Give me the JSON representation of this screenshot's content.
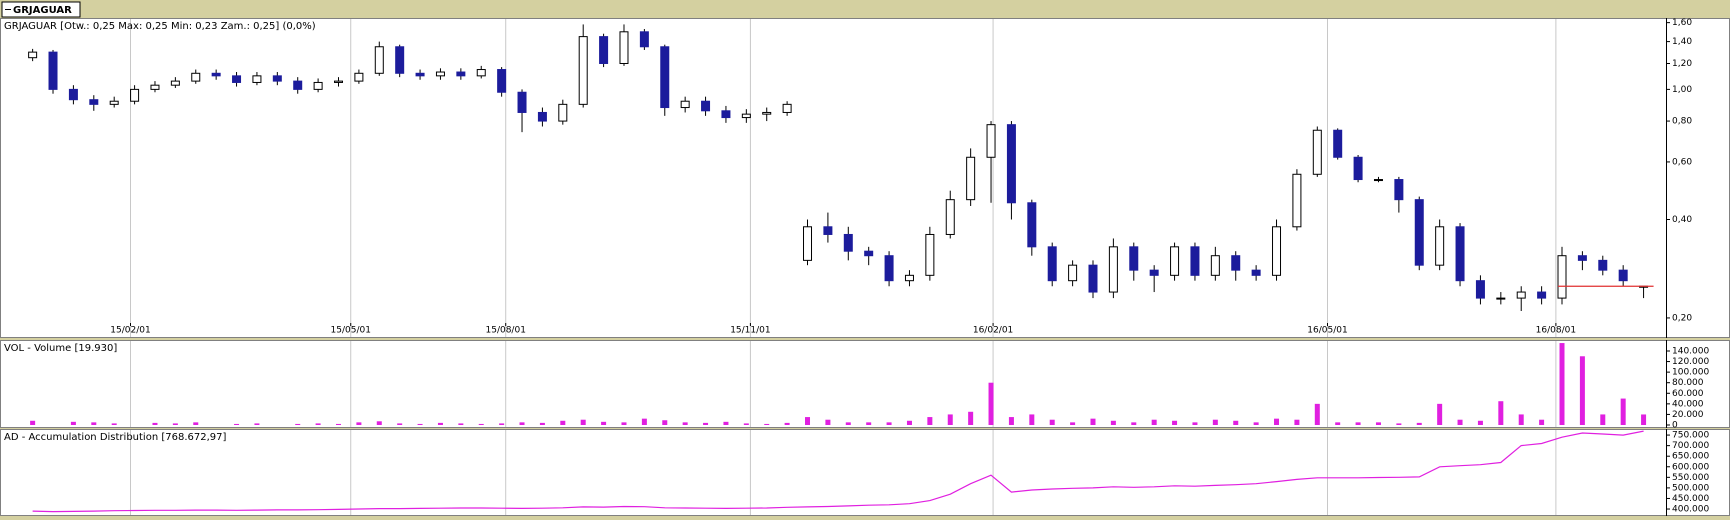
{
  "tab_label": "GRJAGUAR",
  "chart_data": [
    {
      "type": "candlestick",
      "title": "GRJAGUAR [Otw.: 0,25 Max: 0,25 Min: 0,23 Zam.: 0,25] (0,0%)",
      "xlim": [
        -1.6,
        80.1
      ],
      "xticks": [
        {
          "value": 4.8,
          "label": "15/02/01"
        },
        {
          "value": 15.6,
          "label": "15/05/01"
        },
        {
          "value": 23.2,
          "label": "15/08/01"
        },
        {
          "value": 35.2,
          "label": "15/11/01"
        },
        {
          "value": 47.1,
          "label": "16/02/01"
        },
        {
          "value": 63.5,
          "label": "16/05/01"
        },
        {
          "value": 74.7,
          "label": "16/08/01"
        }
      ],
      "ylim": [
        0.193,
        1.63
      ],
      "yticks": [
        {
          "value": 0.2,
          "label": "0,20"
        },
        {
          "value": 0.4,
          "label": "0,40"
        },
        {
          "value": 0.6,
          "label": "0,60"
        },
        {
          "value": 0.8,
          "label": "0,80"
        },
        {
          "value": 1.0,
          "label": "1,00"
        },
        {
          "value": 1.2,
          "label": "1,20"
        },
        {
          "value": 1.4,
          "label": "1,40"
        },
        {
          "value": 1.6,
          "label": "1,60"
        }
      ],
      "log_scale": true,
      "grid": true,
      "up_color": "#ffffff",
      "down_color": "#1c1c9c",
      "reference_line": {
        "value": 0.25,
        "color": "#e03030"
      },
      "open": [
        1.25,
        1.3,
        1.0,
        0.93,
        0.9,
        0.92,
        1.0,
        1.03,
        1.06,
        1.12,
        1.1,
        1.05,
        1.1,
        1.06,
        1.0,
        1.05,
        1.06,
        1.12,
        1.35,
        1.12,
        1.1,
        1.13,
        1.1,
        1.15,
        0.98,
        0.85,
        0.8,
        0.9,
        1.45,
        1.2,
        1.5,
        1.35,
        0.88,
        0.92,
        0.86,
        0.82,
        0.84,
        0.85,
        0.3,
        0.38,
        0.36,
        0.32,
        0.31,
        0.26,
        0.27,
        0.36,
        0.46,
        0.62,
        0.78,
        0.45,
        0.33,
        0.26,
        0.29,
        0.24,
        0.33,
        0.28,
        0.27,
        0.33,
        0.27,
        0.31,
        0.28,
        0.27,
        0.38,
        0.55,
        0.75,
        0.62,
        0.53,
        0.53,
        0.46,
        0.29,
        0.38,
        0.26,
        0.23,
        0.23,
        0.24,
        0.23,
        0.31,
        0.3,
        0.28,
        0.25
      ],
      "high": [
        1.33,
        1.32,
        1.03,
        0.96,
        0.95,
        1.03,
        1.06,
        1.09,
        1.15,
        1.15,
        1.13,
        1.13,
        1.13,
        1.09,
        1.08,
        1.09,
        1.15,
        1.4,
        1.37,
        1.15,
        1.16,
        1.16,
        1.18,
        1.17,
        1.0,
        0.88,
        0.93,
        1.58,
        1.48,
        1.58,
        1.53,
        1.37,
        0.95,
        0.95,
        0.89,
        0.87,
        0.88,
        0.92,
        0.4,
        0.42,
        0.38,
        0.33,
        0.32,
        0.28,
        0.38,
        0.49,
        0.66,
        0.8,
        0.8,
        0.46,
        0.34,
        0.3,
        0.3,
        0.35,
        0.34,
        0.29,
        0.34,
        0.34,
        0.33,
        0.32,
        0.29,
        0.4,
        0.57,
        0.77,
        0.76,
        0.63,
        0.54,
        0.54,
        0.47,
        0.4,
        0.39,
        0.27,
        0.24,
        0.25,
        0.25,
        0.33,
        0.32,
        0.31,
        0.29,
        0.25
      ],
      "low": [
        1.22,
        0.97,
        0.9,
        0.86,
        0.88,
        0.9,
        0.98,
        1.01,
        1.04,
        1.07,
        1.02,
        1.03,
        1.03,
        0.97,
        0.98,
        1.02,
        1.04,
        1.1,
        1.09,
        1.07,
        1.07,
        1.07,
        1.08,
        0.95,
        0.74,
        0.77,
        0.78,
        0.88,
        1.17,
        1.18,
        1.32,
        0.83,
        0.85,
        0.83,
        0.79,
        0.79,
        0.8,
        0.83,
        0.29,
        0.34,
        0.3,
        0.29,
        0.25,
        0.25,
        0.26,
        0.35,
        0.44,
        0.45,
        0.4,
        0.31,
        0.25,
        0.25,
        0.23,
        0.23,
        0.26,
        0.24,
        0.26,
        0.26,
        0.26,
        0.26,
        0.26,
        0.26,
        0.37,
        0.54,
        0.61,
        0.52,
        0.52,
        0.42,
        0.28,
        0.28,
        0.25,
        0.22,
        0.22,
        0.21,
        0.22,
        0.22,
        0.28,
        0.27,
        0.25,
        0.23
      ],
      "close": [
        1.3,
        1.0,
        0.93,
        0.9,
        0.92,
        1.0,
        1.03,
        1.06,
        1.12,
        1.1,
        1.05,
        1.1,
        1.06,
        1.0,
        1.05,
        1.06,
        1.12,
        1.35,
        1.12,
        1.1,
        1.13,
        1.1,
        1.15,
        0.98,
        0.85,
        0.8,
        0.9,
        1.45,
        1.2,
        1.5,
        1.35,
        0.88,
        0.92,
        0.86,
        0.82,
        0.84,
        0.85,
        0.9,
        0.38,
        0.36,
        0.32,
        0.31,
        0.26,
        0.27,
        0.36,
        0.46,
        0.62,
        0.78,
        0.45,
        0.33,
        0.26,
        0.29,
        0.24,
        0.33,
        0.28,
        0.27,
        0.33,
        0.27,
        0.31,
        0.28,
        0.27,
        0.38,
        0.55,
        0.75,
        0.62,
        0.53,
        0.53,
        0.46,
        0.29,
        0.38,
        0.26,
        0.23,
        0.23,
        0.24,
        0.23,
        0.31,
        0.3,
        0.28,
        0.26,
        0.25
      ]
    },
    {
      "type": "bar",
      "title": "VOL - Volume [19.930]",
      "color": "#e020e0",
      "ylim": [
        0,
        157000
      ],
      "yticks": [
        0,
        {
          "value": 20000,
          "label": "20.000"
        },
        {
          "value": 40000,
          "label": "40.000"
        },
        {
          "value": 60000,
          "label": "60.000"
        },
        {
          "value": 80000,
          "label": "80.000"
        },
        {
          "value": 100000,
          "label": "100.000"
        },
        {
          "value": 120000,
          "label": "120.000"
        },
        {
          "value": 140000,
          "label": "140.000"
        }
      ],
      "values": [
        8000,
        0,
        6000,
        5000,
        3000,
        0,
        4000,
        3000,
        5000,
        0,
        2000,
        3000,
        0,
        2000,
        3000,
        2000,
        5000,
        7000,
        3000,
        2000,
        4000,
        3000,
        2000,
        3000,
        5000,
        4000,
        8000,
        10000,
        6000,
        5000,
        12000,
        9000,
        5000,
        4000,
        6000,
        3000,
        2000,
        4000,
        15000,
        10000,
        5000,
        5000,
        5000,
        8000,
        15000,
        20000,
        25000,
        80000,
        15000,
        20000,
        10000,
        5000,
        12000,
        8000,
        5000,
        10000,
        8000,
        5000,
        10000,
        8000,
        5000,
        12000,
        10000,
        40000,
        5000,
        5000,
        5000,
        3000,
        4000,
        40000,
        10000,
        8000,
        45000,
        20000,
        10000,
        155000,
        130000,
        20000,
        50000,
        19930
      ]
    },
    {
      "type": "line",
      "title": "AD - Accumulation Distribution [768.672,97]",
      "color": "#e020e0",
      "ylim": [
        367000,
        774000
      ],
      "yticks": [
        {
          "value": 400000,
          "label": "400.000"
        },
        {
          "value": 450000,
          "label": "450.000"
        },
        {
          "value": 500000,
          "label": "500.000"
        },
        {
          "value": 550000,
          "label": "550.000"
        },
        {
          "value": 600000,
          "label": "600.000"
        },
        {
          "value": 650000,
          "label": "650.000"
        },
        {
          "value": 700000,
          "label": "700.000"
        },
        {
          "value": 750000,
          "label": "750.000"
        }
      ],
      "values": [
        390000,
        388000,
        389000,
        390000,
        392000,
        393000,
        394000,
        394000,
        395000,
        395000,
        394000,
        395000,
        396000,
        396000,
        397000,
        398000,
        400000,
        402000,
        402000,
        403000,
        404000,
        405000,
        405000,
        404000,
        403000,
        404000,
        406000,
        410000,
        409000,
        412000,
        411000,
        406000,
        405000,
        404000,
        403000,
        404000,
        405000,
        408000,
        410000,
        412000,
        415000,
        418000,
        420000,
        425000,
        440000,
        470000,
        520000,
        560000,
        480000,
        490000,
        495000,
        498000,
        500000,
        505000,
        503000,
        505000,
        510000,
        508000,
        512000,
        515000,
        520000,
        530000,
        540000,
        548000,
        548000,
        548000,
        549000,
        550000,
        552000,
        600000,
        605000,
        610000,
        620000,
        700000,
        710000,
        740000,
        760000,
        755000,
        750000,
        768672.97
      ]
    }
  ]
}
